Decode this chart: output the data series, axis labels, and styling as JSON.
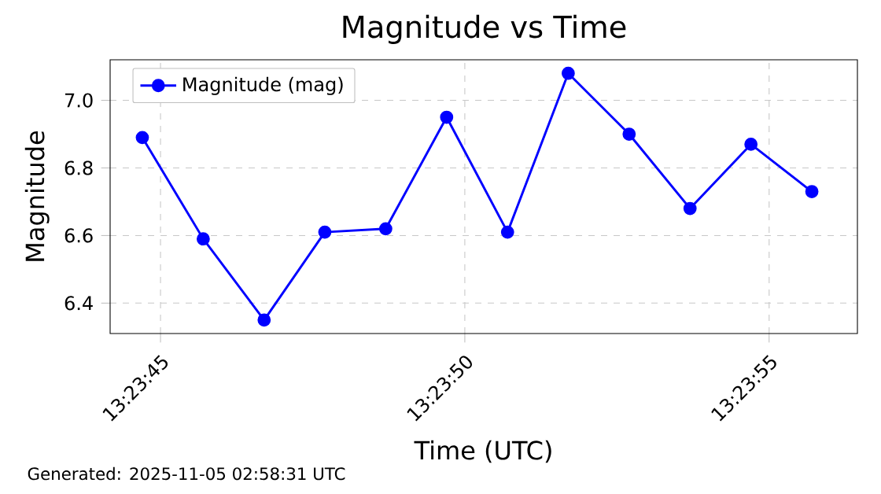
{
  "chart_data": {
    "type": "line",
    "title": "Magnitude vs Time",
    "xlabel": "Time (UTC)",
    "ylabel": "Magnitude",
    "annotations": [
      "Generated: 2025-11-05 02:58:31 UTC"
    ],
    "x": [
      13.39575,
      13.396028,
      13.396306,
      13.396583,
      13.396861,
      13.397139,
      13.397417,
      13.397694,
      13.397972,
      13.39825,
      13.398528,
      13.398806
    ],
    "series": [
      {
        "name": "Magnitude (mag)",
        "color": "#0000ff",
        "values": [
          6.89,
          6.59,
          6.35,
          6.61,
          6.62,
          6.95,
          6.61,
          7.08,
          6.9,
          6.68,
          6.87,
          6.73
        ]
      }
    ],
    "xlim": [
      13.395603,
      13.399014
    ],
    "xticks": [
      {
        "value": 13.395833,
        "label": "13:23:45"
      },
      {
        "value": 13.397222,
        "label": "13:23:50"
      },
      {
        "value": 13.398611,
        "label": "13:23:55"
      }
    ],
    "ylim": [
      6.31,
      7.12
    ],
    "yticks": [
      6.4,
      6.6,
      6.8,
      {
        "value": 7.0,
        "label": "7.0"
      }
    ],
    "grid": true,
    "legend": "top left",
    "marker": "circle",
    "line_style": "solid"
  }
}
